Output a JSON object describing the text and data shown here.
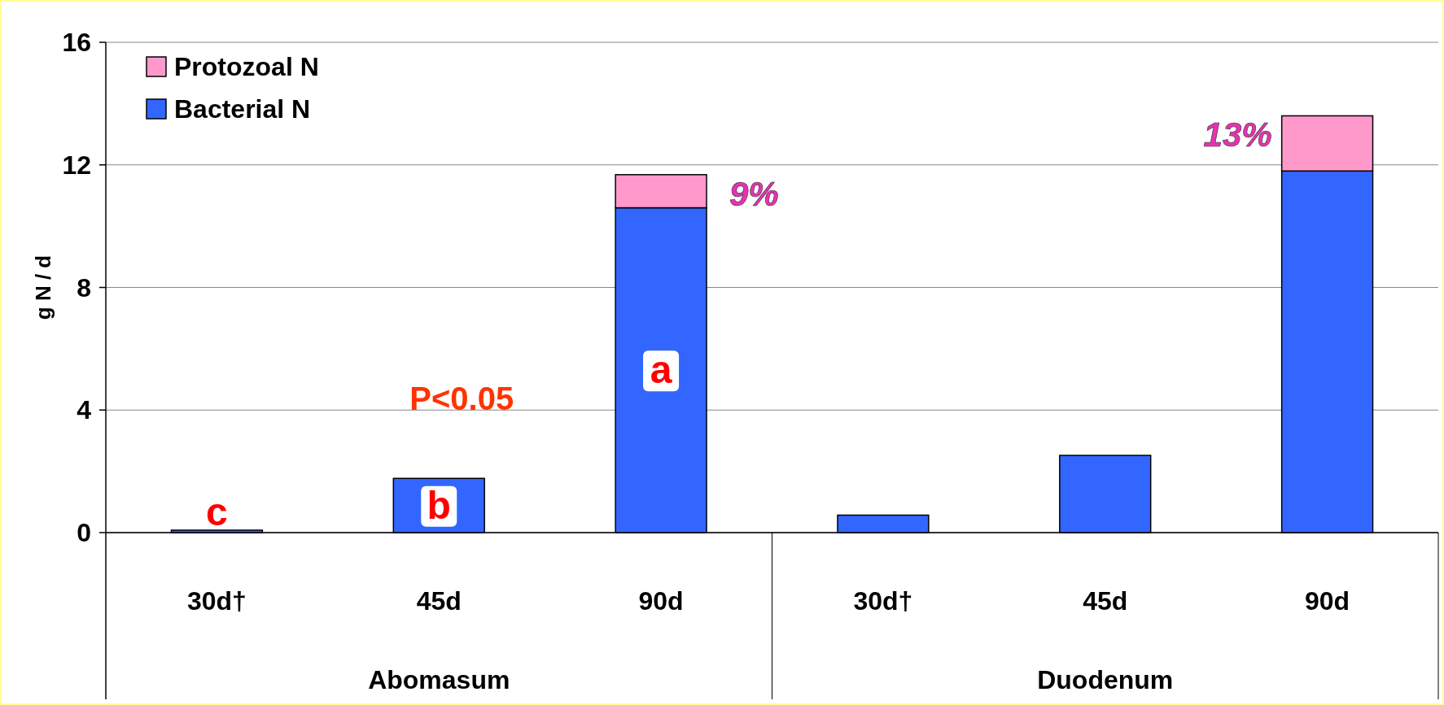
{
  "chart_data": {
    "type": "bar",
    "stacked": true,
    "ylabel": "g N / d",
    "categories": [
      "30d†",
      "45d",
      "90d",
      "30d†",
      "45d",
      "90d"
    ],
    "series": [
      {
        "name": "Bacterial N",
        "color": "#3366ff",
        "values": [
          0.08,
          1.77,
          10.6,
          0.57,
          2.52,
          11.8
        ],
        "value_labels": [
          "c",
          "b",
          "a",
          null,
          null,
          null
        ]
      },
      {
        "name": "Protozoal N",
        "color": "#ff99cc",
        "values": [
          null,
          null,
          1.08,
          null,
          null,
          1.8
        ]
      }
    ],
    "ylim": [
      0,
      16
    ],
    "yticks": [
      0,
      4,
      8,
      12,
      16
    ],
    "grid": "y",
    "legend": "top left",
    "annotations": [
      "P<0.05",
      "Abomasum",
      "Duodenum",
      "9%",
      "13%"
    ]
  }
}
